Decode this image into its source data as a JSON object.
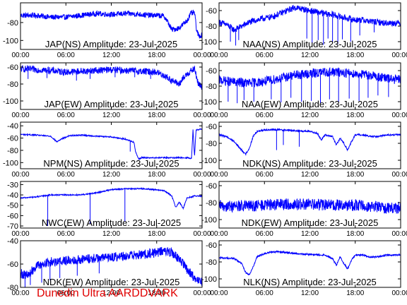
{
  "footer_text": "Dunedin Ultra AARDDVARK",
  "colors": {
    "trace": "#0000ff",
    "frame": "#000000",
    "footer": "#e00000",
    "background": "#ffffff"
  },
  "chart_data": [
    {
      "type": "line",
      "title": "JAP(NS) Amplitude: 23-Jul-2025",
      "x_ticks": [
        "00:00",
        "06:00",
        "12:00",
        "18:00",
        "00:00"
      ],
      "y_ticks": [
        -80,
        -100
      ],
      "ylim": [
        -110,
        -58
      ],
      "noise": 3,
      "series": [
        {
          "x": [
            0,
            2,
            4,
            6,
            8,
            10,
            12,
            14,
            16,
            17,
            18,
            19,
            19.5,
            20,
            21,
            22,
            22.5,
            23,
            23.3,
            23.6,
            24
          ],
          "y": [
            -72,
            -72,
            -74,
            -74,
            -72,
            -70,
            -71,
            -70,
            -71,
            -72,
            -72,
            -73,
            -80,
            -88,
            -86,
            -78,
            -70,
            -69,
            -90,
            -95,
            -94
          ]
        }
      ],
      "spikes": []
    },
    {
      "type": "line",
      "title": "NAA(NS) Amplitude: 23-Jul-2025",
      "x_ticks": [
        "00:00",
        "06:00",
        "12:00",
        "18:00",
        "00:00"
      ],
      "y_ticks": [
        -60,
        -80,
        -100
      ],
      "ylim": [
        -110,
        -50
      ],
      "noise": 4,
      "series": [
        {
          "x": [
            0,
            1,
            2,
            3,
            4,
            5,
            6,
            7,
            8,
            9,
            10,
            11,
            12,
            13,
            14,
            15,
            16,
            17,
            18,
            19,
            20,
            21,
            22,
            23,
            24
          ],
          "y": [
            -75,
            -78,
            -85,
            -80,
            -75,
            -72,
            -70,
            -68,
            -64,
            -60,
            -56,
            -58,
            -60,
            -62,
            -64,
            -65,
            -68,
            -70,
            -72,
            -72,
            -74,
            -75,
            -76,
            -76,
            -76
          ]
        }
      ],
      "spikes": [
        [
          1.5,
          -100
        ],
        [
          2.2,
          -105
        ],
        [
          2.6,
          -98
        ],
        [
          11.6,
          -96
        ],
        [
          12.3,
          -102
        ],
        [
          13.1,
          -98
        ],
        [
          13.8,
          -104
        ],
        [
          14.4,
          -96
        ],
        [
          15.0,
          -100
        ],
        [
          15.7,
          -103
        ],
        [
          16.3,
          -97
        ],
        [
          17.4,
          -100
        ],
        [
          18.6,
          -92
        ],
        [
          20.5,
          -88
        ]
      ]
    },
    {
      "type": "line",
      "title": "JAP(EW) Amplitude: 23-Jul-2025",
      "x_ticks": [
        "00:00",
        "06:00",
        "12:00",
        "18:00",
        "00:00"
      ],
      "y_ticks": [
        -60,
        -80,
        -100
      ],
      "ylim": [
        -110,
        -55
      ],
      "noise": 4,
      "series": [
        {
          "x": [
            0,
            2,
            4,
            6,
            8,
            10,
            12,
            14,
            16,
            18,
            19,
            20,
            21,
            22,
            23,
            23.5,
            24
          ],
          "y": [
            -62,
            -63,
            -64,
            -66,
            -65,
            -64,
            -63,
            -64,
            -65,
            -66,
            -70,
            -76,
            -80,
            -68,
            -62,
            -80,
            -84
          ]
        }
      ],
      "spikes": [
        [
          1.0,
          -74
        ],
        [
          3.5,
          -73
        ],
        [
          7.4,
          -76
        ],
        [
          9.2,
          -74
        ],
        [
          12.5,
          -72
        ],
        [
          15.1,
          -72
        ],
        [
          17.2,
          -74
        ]
      ]
    },
    {
      "type": "line",
      "title": "NAA(EW) Amplitude: 23-Jul-2025",
      "x_ticks": [
        "00:00",
        "06:00",
        "12:00",
        "18:00",
        "00:00"
      ],
      "y_ticks": [
        -60,
        -80,
        -100
      ],
      "ylim": [
        -110,
        -50
      ],
      "noise": 6,
      "series": [
        {
          "x": [
            0,
            2,
            4,
            6,
            8,
            10,
            12,
            14,
            16,
            18,
            20,
            22,
            24
          ],
          "y": [
            -72,
            -75,
            -76,
            -74,
            -70,
            -66,
            -64,
            -62,
            -62,
            -64,
            -66,
            -70,
            -72
          ]
        }
      ],
      "spikes": [
        [
          1.2,
          -100
        ],
        [
          2.4,
          -102
        ],
        [
          3.3,
          -98
        ],
        [
          4.6,
          -100
        ],
        [
          6.9,
          -97
        ],
        [
          8.2,
          -101
        ],
        [
          9.5,
          -95
        ],
        [
          10.9,
          -100
        ],
        [
          12.2,
          -99
        ],
        [
          13.4,
          -102
        ],
        [
          14.6,
          -97
        ],
        [
          15.8,
          -100
        ],
        [
          17.2,
          -96
        ],
        [
          18.5,
          -99
        ],
        [
          19.7,
          -95
        ],
        [
          21.0,
          -92
        ],
        [
          22.4,
          -94
        ]
      ]
    },
    {
      "type": "line",
      "title": "NPM(NS) Amplitude: 23-Jul-2025",
      "x_ticks": [
        "00:00",
        "06:00",
        "12:00",
        "18:00",
        "00:00"
      ],
      "y_ticks": [
        -40,
        -60,
        -80,
        -100
      ],
      "ylim": [
        -110,
        -34
      ],
      "noise": 1,
      "series": [
        {
          "x": [
            0,
            2,
            4,
            4.8,
            5.5,
            6.5,
            8,
            10,
            12,
            13,
            14,
            15,
            15.2,
            15.6,
            16,
            17,
            18,
            20,
            22,
            22.6,
            22.8,
            23,
            23.2,
            24
          ],
          "y": [
            -54,
            -55,
            -57,
            -66,
            -61,
            -56,
            -55,
            -57,
            -58,
            -60,
            -62,
            -67,
            -82,
            -94,
            -92,
            -92,
            -92,
            -92,
            -92,
            -93,
            -47,
            -90,
            -47,
            -45
          ]
        }
      ],
      "spikes": [
        [
          14.5,
          -82
        ]
      ]
    },
    {
      "type": "line",
      "title": "NDK(NS) Amplitude: 23-Jul-2025",
      "x_ticks": [
        "00:00",
        "06:00",
        "12:00",
        "18:00",
        "00:00"
      ],
      "y_ticks": [
        -60,
        -80,
        -100
      ],
      "ylim": [
        -110,
        -55
      ],
      "noise": 1,
      "series": [
        {
          "x": [
            0,
            1,
            2,
            3,
            3.5,
            4,
            4.5,
            5,
            6,
            8,
            10,
            12,
            13,
            13.5,
            14,
            15,
            15.5,
            16,
            16.5,
            17,
            17.5,
            18,
            19,
            20,
            21,
            22,
            24
          ],
          "y": [
            -70,
            -72,
            -78,
            -88,
            -93,
            -86,
            -72,
            -66,
            -64,
            -64,
            -65,
            -66,
            -68,
            -76,
            -70,
            -72,
            -82,
            -74,
            -80,
            -88,
            -78,
            -70,
            -70,
            -72,
            -72,
            -70,
            -70
          ]
        }
      ],
      "spikes": [
        [
          7.6,
          -88
        ],
        [
          8.5,
          -82
        ],
        [
          10.6,
          -84
        ]
      ]
    },
    {
      "type": "line",
      "title": "NWC(EW) Amplitude: 23-Jul-2025",
      "x_ticks": [
        "00:00",
        "06:00",
        "12:00",
        "18:00",
        "00:00"
      ],
      "y_ticks": [
        -30,
        -40,
        -50,
        -60,
        -70
      ],
      "ylim": [
        -72,
        -27
      ],
      "noise": 0.6,
      "series": [
        {
          "x": [
            0,
            2,
            4,
            6,
            8,
            10,
            12,
            14,
            16,
            18,
            19,
            20,
            20.5,
            21,
            21.5,
            22,
            23,
            24
          ],
          "y": [
            -43,
            -42,
            -40,
            -40,
            -40,
            -38,
            -35,
            -34,
            -34,
            -35,
            -36,
            -41,
            -52,
            -47,
            -53,
            -43,
            -41,
            -41
          ]
        }
      ],
      "spikes": [
        [
          3.6,
          -70
        ],
        [
          9.2,
          -68
        ],
        [
          13.8,
          -66
        ]
      ]
    },
    {
      "type": "line",
      "title": "NDK(EW) Amplitude: 23-Jul-2025",
      "x_ticks": [
        "00:00",
        "06:00",
        "12:00",
        "18:00",
        "00:00"
      ],
      "y_ticks": [
        -60,
        -80,
        -100
      ],
      "ylim": [
        -110,
        -55
      ],
      "noise": 7,
      "series": [
        {
          "x": [
            0,
            4,
            8,
            12,
            16,
            18,
            20,
            22,
            24
          ],
          "y": [
            -84,
            -84,
            -82,
            -82,
            -83,
            -83,
            -84,
            -86,
            -86
          ]
        }
      ],
      "spikes": []
    },
    {
      "type": "line",
      "title": "NDK(EW) Amplitude: 23-Jul-2025",
      "x_ticks": [
        "00:00",
        "06:00",
        "12:00",
        "18:00",
        "00:00"
      ],
      "y_ticks": [
        -40,
        -60,
        -80
      ],
      "ylim": [
        -80,
        -40
      ],
      "noise": 4,
      "series": [
        {
          "x": [
            0,
            1,
            2,
            4,
            6,
            8,
            10,
            12,
            14,
            16,
            18,
            19,
            20,
            21,
            22,
            23,
            24
          ],
          "y": [
            -68,
            -70,
            -62,
            -58,
            -57,
            -56,
            -55,
            -54,
            -53,
            -52,
            -50,
            -49,
            -50,
            -56,
            -64,
            -72,
            -76
          ]
        }
      ],
      "spikes": [
        [
          0.6,
          -80
        ],
        [
          1.3,
          -78
        ],
        [
          2.8,
          -76
        ],
        [
          3.9,
          -74
        ],
        [
          5.2,
          -72
        ],
        [
          7.5,
          -70
        ],
        [
          10.4,
          -68
        ]
      ]
    },
    {
      "type": "line",
      "title": "NLK(NS) Amplitude: 23-Jul-2025",
      "x_ticks": [
        "00:00",
        "06:00",
        "12:00",
        "18:00",
        "00:00"
      ],
      "y_ticks": [
        -60,
        -80,
        -100
      ],
      "ylim": [
        -110,
        -55
      ],
      "noise": 1,
      "series": [
        {
          "x": [
            0,
            2,
            3,
            3.5,
            4,
            4.5,
            5,
            6,
            7,
            8,
            10,
            12,
            14,
            15,
            15.5,
            16,
            16.5,
            17,
            17.5,
            18,
            19,
            20,
            21,
            22,
            24
          ],
          "y": [
            -75,
            -76,
            -82,
            -92,
            -95,
            -86,
            -74,
            -70,
            -68,
            -68,
            -70,
            -71,
            -72,
            -76,
            -84,
            -74,
            -82,
            -88,
            -78,
            -72,
            -72,
            -74,
            -74,
            -72,
            -72
          ]
        }
      ],
      "spikes": []
    }
  ]
}
